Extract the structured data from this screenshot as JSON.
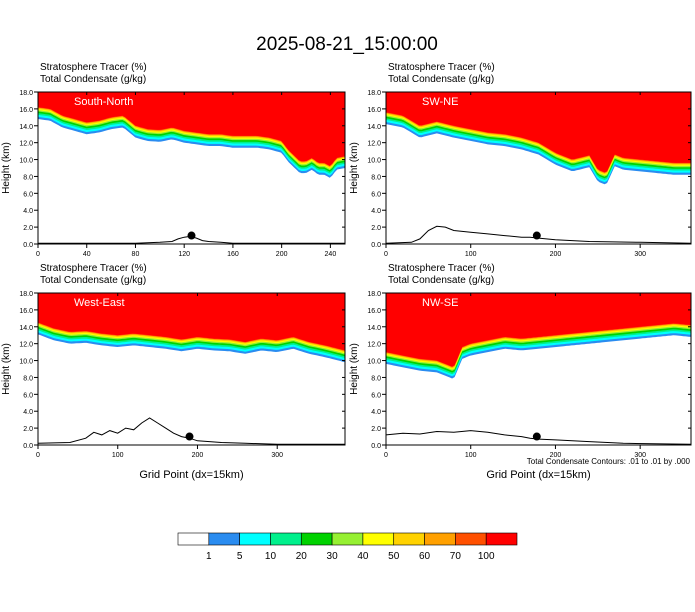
{
  "figure": {
    "title": "2025-08-21_15:00:00",
    "footnote": "Total Condensate Contours: .01 to .01 by .000"
  },
  "colors": {
    "bins": [
      "#ffffff",
      "#2a8cf0",
      "#00ffff",
      "#00f08c",
      "#00d200",
      "#96f032",
      "#ffff00",
      "#ffd200",
      "#ffa000",
      "#ff5000",
      "#ff0000"
    ],
    "contour": "#000000",
    "marker": "#000000"
  },
  "colorbar": {
    "labels": [
      "1",
      "5",
      "10",
      "20",
      "30",
      "40",
      "50",
      "60",
      "70",
      "100"
    ]
  },
  "chart_data": [
    {
      "type": "heatmap",
      "panel_label": "South-North",
      "header_line1": "Stratosphere Tracer   (%)",
      "header_line2": "Total Condensate   (g/kg)",
      "xlabel": "",
      "ylabel": "Height (km)",
      "xlim": [
        0,
        252
      ],
      "ylim": [
        0,
        18
      ],
      "xticks": [
        0,
        40,
        80,
        120,
        160,
        200,
        240
      ],
      "xtick_labels": [
        "0",
        "40",
        "80",
        "120",
        "160",
        "200",
        "240"
      ],
      "yticks": [
        0,
        2,
        4,
        6,
        8,
        10,
        12,
        14,
        16,
        18
      ],
      "ytick_labels": [
        "0.0",
        "2.0",
        "4.0",
        "6.0",
        "8.0",
        "10.0",
        "12.0",
        "14.0",
        "16.0",
        "18.0"
      ],
      "tropopause_km": {
        "x": [
          0,
          10,
          20,
          30,
          40,
          50,
          60,
          70,
          80,
          90,
          100,
          110,
          120,
          130,
          140,
          150,
          160,
          170,
          180,
          190,
          200,
          205,
          210,
          215,
          220,
          225,
          230,
          235,
          240,
          245,
          252
        ],
        "y": [
          16.2,
          16.0,
          15.2,
          14.8,
          14.4,
          14.6,
          15.0,
          15.2,
          14.0,
          13.6,
          13.5,
          13.8,
          13.4,
          13.2,
          13.0,
          13.0,
          12.8,
          12.8,
          12.8,
          12.6,
          12.2,
          11.2,
          10.5,
          9.8,
          9.8,
          10.2,
          9.6,
          9.6,
          9.2,
          10.2,
          10.4
        ]
      },
      "terrain_km": {
        "x": [
          0,
          40,
          80,
          100,
          110,
          115,
          120,
          125,
          130,
          135,
          140,
          150,
          160,
          170,
          252
        ],
        "y": [
          0.1,
          0.1,
          0.1,
          0.2,
          0.3,
          0.6,
          0.8,
          0.9,
          0.7,
          0.4,
          0.3,
          0.2,
          0.1,
          0.1,
          0.1
        ]
      },
      "marker": {
        "x": 126,
        "y": 1.0
      }
    },
    {
      "type": "heatmap",
      "panel_label": "SW-NE",
      "header_line1": "Stratosphere Tracer   (%)",
      "header_line2": "Total Condensate   (g/kg)",
      "xlabel": "",
      "ylabel": "Height (km)",
      "xlim": [
        0,
        360
      ],
      "ylim": [
        0,
        18
      ],
      "xticks": [
        0,
        100,
        200,
        300
      ],
      "xtick_labels": [
        "0",
        "100",
        "200",
        "300"
      ],
      "yticks": [
        0,
        2,
        4,
        6,
        8,
        10,
        12,
        14,
        16,
        18
      ],
      "ytick_labels": [
        "0.0",
        "2.0",
        "4.0",
        "6.0",
        "8.0",
        "10.0",
        "12.0",
        "14.0",
        "16.0",
        "18.0"
      ],
      "tropopause_km": {
        "x": [
          0,
          20,
          40,
          60,
          80,
          100,
          120,
          140,
          160,
          180,
          200,
          210,
          220,
          240,
          250,
          260,
          270,
          280,
          300,
          320,
          340,
          360
        ],
        "y": [
          15.6,
          15.2,
          14.0,
          14.5,
          14.0,
          13.6,
          13.2,
          13.0,
          12.6,
          12.0,
          10.8,
          10.4,
          10.0,
          10.5,
          8.8,
          8.4,
          10.6,
          10.2,
          10.0,
          9.8,
          9.6,
          9.6
        ]
      },
      "terrain_km": {
        "x": [
          0,
          30,
          40,
          50,
          60,
          70,
          80,
          100,
          120,
          140,
          160,
          170,
          180,
          200,
          240,
          300,
          360
        ],
        "y": [
          0.1,
          0.2,
          0.6,
          1.6,
          2.1,
          2.0,
          1.6,
          1.4,
          1.2,
          1.0,
          0.8,
          0.8,
          0.7,
          0.5,
          0.3,
          0.2,
          0.1
        ]
      },
      "marker": {
        "x": 178,
        "y": 1.0
      }
    },
    {
      "type": "heatmap",
      "panel_label": "West-East",
      "header_line1": "Stratosphere Tracer   (%)",
      "header_line2": "Total Condensate   (g/kg)",
      "xlabel": "Grid Point (dx=15km)",
      "ylabel": "Height (km)",
      "xlim": [
        0,
        385
      ],
      "ylim": [
        0,
        18
      ],
      "xticks": [
        0,
        100,
        200,
        300
      ],
      "xtick_labels": [
        "0",
        "100",
        "200",
        "300"
      ],
      "yticks": [
        0,
        2,
        4,
        6,
        8,
        10,
        12,
        14,
        16,
        18
      ],
      "ytick_labels": [
        "0.0",
        "2.0",
        "4.0",
        "6.0",
        "8.0",
        "10.0",
        "12.0",
        "14.0",
        "16.0",
        "18.0"
      ],
      "tropopause_km": {
        "x": [
          0,
          20,
          40,
          60,
          80,
          100,
          120,
          140,
          160,
          180,
          200,
          220,
          240,
          260,
          280,
          300,
          320,
          340,
          360,
          385
        ],
        "y": [
          14.5,
          13.8,
          13.4,
          13.5,
          13.2,
          13.0,
          13.2,
          13.0,
          12.8,
          12.5,
          12.8,
          12.6,
          12.5,
          12.2,
          12.6,
          12.4,
          12.8,
          12.2,
          11.8,
          11.2
        ]
      },
      "terrain_km": {
        "x": [
          0,
          40,
          60,
          70,
          80,
          90,
          100,
          110,
          120,
          130,
          140,
          150,
          160,
          170,
          180,
          190,
          200,
          230,
          260,
          300,
          385
        ],
        "y": [
          0.2,
          0.3,
          0.8,
          1.5,
          1.2,
          1.7,
          1.4,
          2.0,
          1.8,
          2.6,
          3.2,
          2.6,
          2.0,
          1.4,
          1.0,
          0.8,
          0.5,
          0.3,
          0.2,
          0.1,
          0.1
        ]
      },
      "marker": {
        "x": 190,
        "y": 1.0
      }
    },
    {
      "type": "heatmap",
      "panel_label": "NW-SE",
      "header_line1": "Stratosphere Tracer   (%)",
      "header_line2": "Total Condensate   (g/kg)",
      "xlabel": "Grid Point (dx=15km)",
      "ylabel": "Height (km)",
      "xlim": [
        0,
        360
      ],
      "ylim": [
        0,
        18
      ],
      "xticks": [
        0,
        100,
        200,
        300
      ],
      "xtick_labels": [
        "0",
        "100",
        "200",
        "300"
      ],
      "yticks": [
        0,
        2,
        4,
        6,
        8,
        10,
        12,
        14,
        16,
        18
      ],
      "ytick_labels": [
        "0.0",
        "2.0",
        "4.0",
        "6.0",
        "8.0",
        "10.0",
        "12.0",
        "14.0",
        "16.0",
        "18.0"
      ],
      "tropopause_km": {
        "x": [
          0,
          20,
          40,
          60,
          70,
          80,
          90,
          100,
          120,
          140,
          160,
          180,
          200,
          220,
          240,
          260,
          280,
          300,
          320,
          340,
          360
        ],
        "y": [
          11.0,
          10.6,
          10.2,
          10.0,
          9.6,
          9.2,
          11.6,
          12.0,
          12.4,
          12.8,
          12.6,
          12.8,
          13.0,
          13.2,
          13.4,
          13.6,
          13.8,
          14.0,
          14.2,
          14.4,
          14.2
        ]
      },
      "terrain_km": {
        "x": [
          0,
          20,
          40,
          60,
          80,
          100,
          120,
          140,
          160,
          170,
          180,
          200,
          240,
          280,
          360
        ],
        "y": [
          1.2,
          1.4,
          1.3,
          1.6,
          1.5,
          1.7,
          1.5,
          1.2,
          1.0,
          0.8,
          0.7,
          0.6,
          0.4,
          0.2,
          0.1
        ]
      },
      "marker": {
        "x": 178,
        "y": 1.0
      }
    }
  ]
}
